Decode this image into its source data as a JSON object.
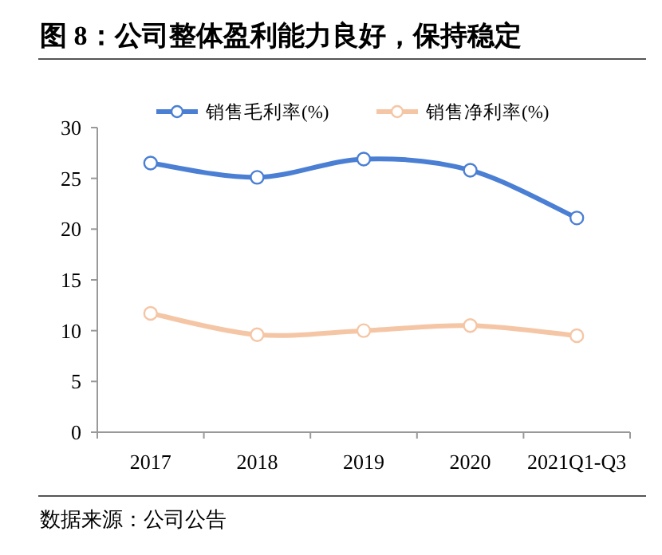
{
  "chart_data": {
    "type": "line",
    "title": "图  8：公司整体盈利能力良好，保持稳定",
    "categories": [
      "2017",
      "2018",
      "2019",
      "2020",
      "2021Q1-Q3"
    ],
    "series": [
      {
        "name": "销售毛利率(%)",
        "color": "#4a7fd4",
        "values": [
          26.5,
          25.1,
          26.9,
          25.8,
          21.1
        ]
      },
      {
        "name": "销售净利率(%)",
        "color": "#f5c6a5",
        "values": [
          11.7,
          9.6,
          10.0,
          10.5,
          9.5
        ]
      }
    ],
    "ylim": [
      0,
      30
    ],
    "yticks": [
      0,
      5,
      10,
      15,
      20,
      25,
      30
    ],
    "legend": "top",
    "marker": "circle",
    "annotations": [
      "数据来源：公司公告"
    ]
  }
}
